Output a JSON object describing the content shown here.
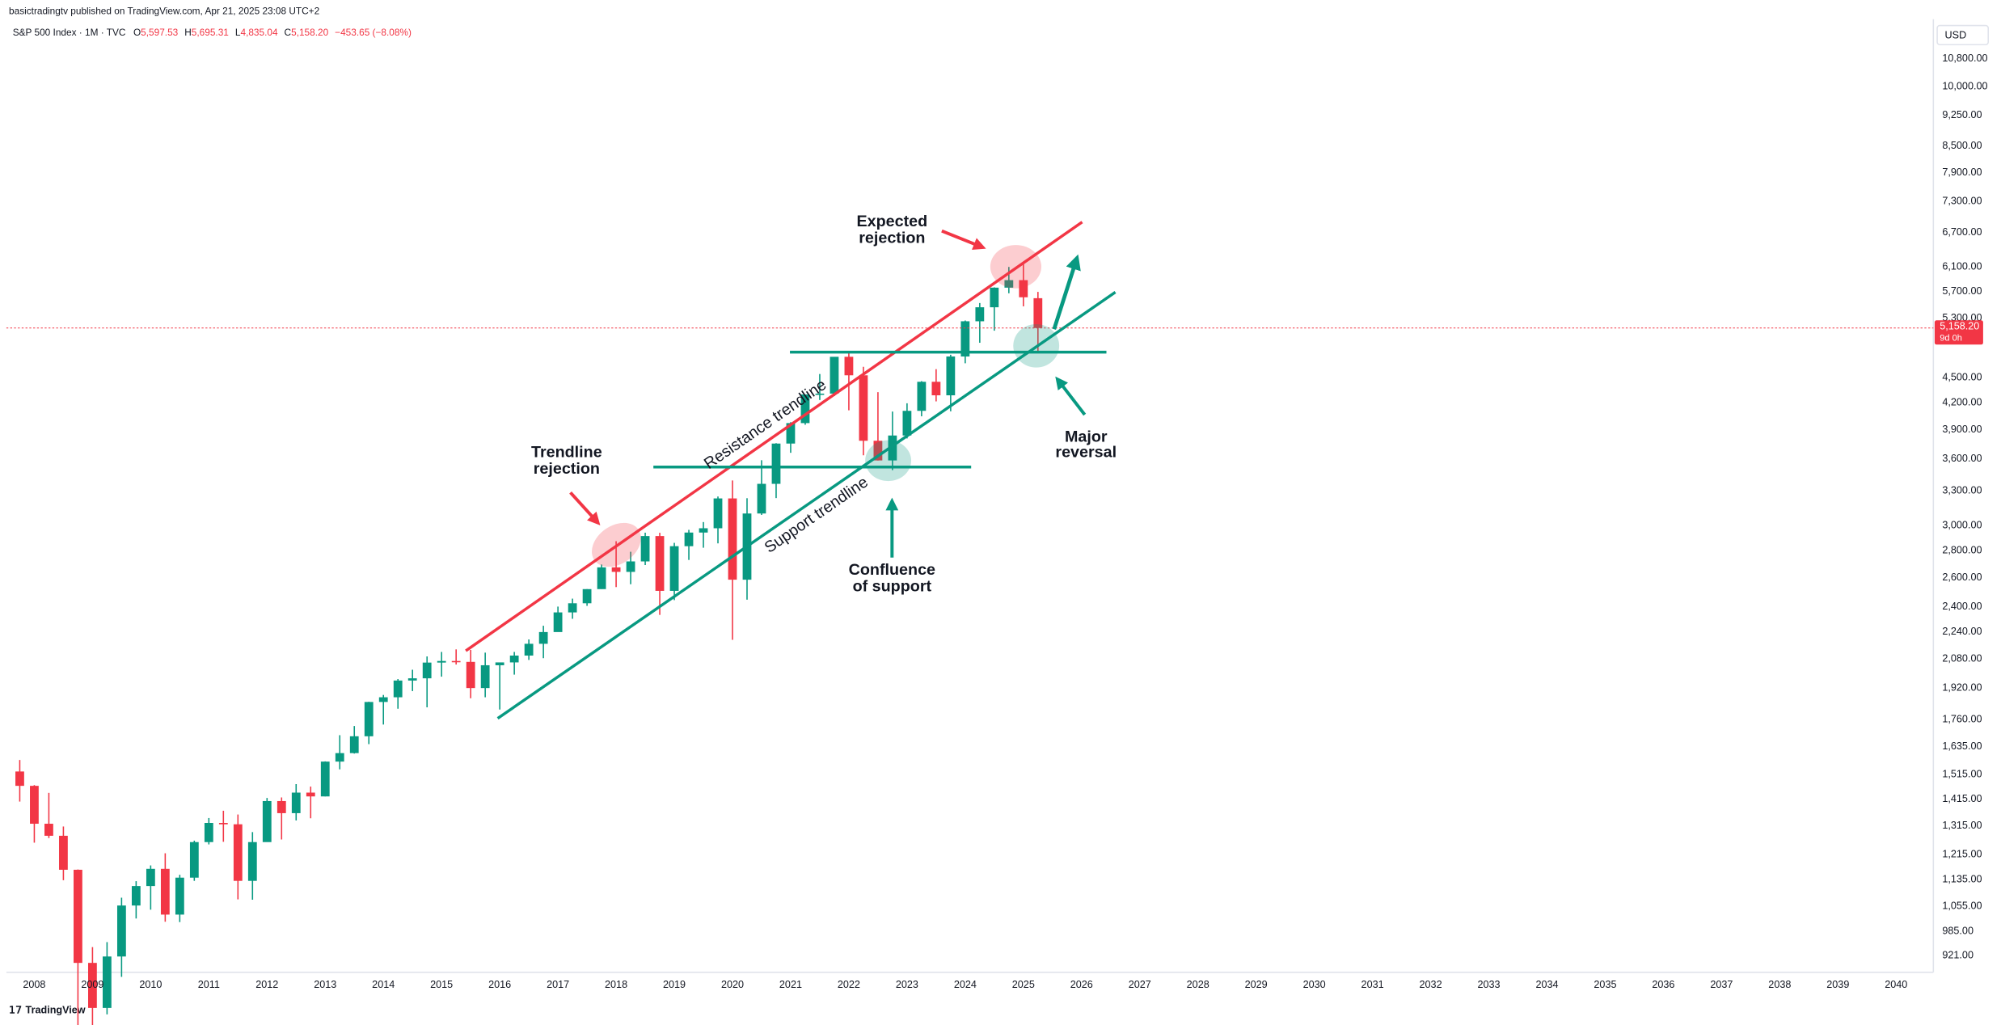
{
  "header": {
    "publisher": "basictradingtv published on TradingView.com, Apr 21, 2025 23:08 UTC+2",
    "symbol": "S&P 500 Index · 1M · TVC",
    "ohlc": [
      {
        "label": "O",
        "value": "5,597.53"
      },
      {
        "label": "H",
        "value": "5,695.31"
      },
      {
        "label": "L",
        "value": "4,835.04"
      },
      {
        "label": "C",
        "value": "5,158.20"
      }
    ],
    "change": "−453.65 (−8.08%)"
  },
  "chart_data": {
    "type": "candlestick",
    "log_scale": true,
    "up_color": "#089981",
    "down_color": "#f23645",
    "currency": "USD",
    "x": [
      2007.75,
      2008.0,
      2008.25,
      2008.5,
      2008.75,
      2009.0,
      2009.25,
      2009.5,
      2009.75,
      2010.0,
      2010.25,
      2010.5,
      2010.75,
      2011.0,
      2011.25,
      2011.5,
      2011.75,
      2012.0,
      2012.25,
      2012.5,
      2012.75,
      2013.0,
      2013.25,
      2013.5,
      2013.75,
      2014.0,
      2014.25,
      2014.5,
      2014.75,
      2015.0,
      2015.25,
      2015.5,
      2015.75,
      2016.0,
      2016.25,
      2016.5,
      2016.75,
      2017.0,
      2017.25,
      2017.5,
      2017.75,
      2018.0,
      2018.25,
      2018.5,
      2018.75,
      2019.0,
      2019.25,
      2019.5,
      2019.75,
      2020.0,
      2020.25,
      2020.5,
      2020.75,
      2021.0,
      2021.25,
      2021.5,
      2021.75,
      2022.0,
      2022.25,
      2022.5,
      2022.75,
      2023.0,
      2023.25,
      2023.5,
      2023.75,
      2024.0,
      2024.25,
      2024.5,
      2024.75,
      2025.0,
      2025.25
    ],
    "open": [
      1527,
      1468,
      1323,
      1280,
      1166,
      903,
      798,
      919,
      1057,
      1115,
      1169,
      1031,
      1141,
      1258,
      1326,
      1321,
      1131,
      1258,
      1408,
      1362,
      1441,
      1426,
      1569,
      1606,
      1682,
      1848,
      1872,
      1960,
      1972,
      2059,
      2068,
      2063,
      1920,
      2044,
      2060,
      2099,
      2168,
      2239,
      2363,
      2423,
      2519,
      2674,
      2641,
      2718,
      2914,
      2507,
      2834,
      2942,
      2977,
      3231,
      2585,
      3100,
      3363,
      3756,
      3973,
      4298,
      4308,
      4766,
      4530,
      3785,
      3586,
      3840,
      4109,
      4450,
      4288,
      4770,
      5254,
      5460,
      5762,
      5882,
      5597.53
    ],
    "high": [
      1576,
      1471,
      1440,
      1313,
      1167,
      943,
      956,
      1080,
      1130,
      1180,
      1220,
      1150,
      1263,
      1344,
      1371,
      1357,
      1293,
      1420,
      1422,
      1475,
      1465,
      1570,
      1687,
      1730,
      1849,
      1884,
      1968,
      2019,
      2094,
      2120,
      2135,
      2132,
      2116,
      2044,
      2120,
      2194,
      2278,
      2401,
      2454,
      2519,
      2695,
      2873,
      2791,
      2941,
      2940,
      2860,
      2964,
      3028,
      3248,
      3394,
      3233,
      3588,
      3760,
      3983,
      4298,
      4546,
      4744,
      4818,
      4637,
      4325,
      4101,
      4195,
      4458,
      4607,
      4793,
      5265,
      5524,
      5767,
      6099,
      6147,
      5695.31
    ],
    "low": [
      1406,
      1256,
      1272,
      1133,
      741,
      667,
      784,
      869,
      1020,
      1045,
      1011,
      1010,
      1131,
      1250,
      1259,
      1075,
      1074,
      1259,
      1267,
      1335,
      1343,
      1426,
      1536,
      1604,
      1646,
      1737,
      1814,
      1904,
      1821,
      1981,
      2048,
      1867,
      1872,
      1810,
      1992,
      2074,
      2084,
      2245,
      2322,
      2406,
      2520,
      2533,
      2553,
      2691,
      2347,
      2444,
      2729,
      2822,
      2856,
      2192,
      2447,
      3088,
      3234,
      3662,
      3955,
      4233,
      4279,
      4115,
      3637,
      3585,
      3492,
      3809,
      4048,
      4217,
      4104,
      4682,
      4953,
      5120,
      5674,
      5474,
      4835.04
    ],
    "close": [
      1468,
      1323,
      1280,
      1166,
      903,
      798,
      919,
      1057,
      1115,
      1169,
      1031,
      1141,
      1258,
      1326,
      1321,
      1131,
      1258,
      1408,
      1362,
      1441,
      1426,
      1569,
      1606,
      1682,
      1848,
      1872,
      1960,
      1972,
      2059,
      2068,
      2063,
      1920,
      2044,
      2060,
      2099,
      2168,
      2239,
      2363,
      2423,
      2519,
      2674,
      2641,
      2718,
      2914,
      2507,
      2834,
      2942,
      2977,
      3231,
      2585,
      3100,
      3363,
      3756,
      3973,
      4298,
      4308,
      4766,
      4530,
      3785,
      3586,
      3840,
      4109,
      4450,
      4288,
      4770,
      5254,
      5460,
      5762,
      5882,
      5612,
      5158.2
    ],
    "xlim": [
      2007.52,
      2040.64
    ],
    "xticks": [
      2008,
      2009,
      2010,
      2011,
      2012,
      2013,
      2014,
      2015,
      2016,
      2017,
      2018,
      2019,
      2020,
      2021,
      2022,
      2023,
      2024,
      2025,
      2026,
      2027,
      2028,
      2029,
      2030,
      2031,
      2032,
      2033,
      2034,
      2035,
      2036,
      2037,
      2038,
      2039,
      2040
    ],
    "ylim": [
      880,
      12040
    ],
    "yticks": [
      {
        "value": 10800,
        "label": "10,800.00"
      },
      {
        "value": 10000,
        "label": "10,000.00"
      },
      {
        "value": 9250,
        "label": "9,250.00"
      },
      {
        "value": 8500,
        "label": "8,500.00"
      },
      {
        "value": 7900,
        "label": "7,900.00"
      },
      {
        "value": 7300,
        "label": "7,300.00"
      },
      {
        "value": 6700,
        "label": "6,700.00"
      },
      {
        "value": 6100,
        "label": "6,100.00"
      },
      {
        "value": 5700,
        "label": "5,700.00"
      },
      {
        "value": 5300,
        "label": "5,300.00"
      },
      {
        "value": 4500,
        "label": "4,500.00"
      },
      {
        "value": 4200,
        "label": "4,200.00"
      },
      {
        "value": 3900,
        "label": "3,900.00"
      },
      {
        "value": 3600,
        "label": "3,600.00"
      },
      {
        "value": 3300,
        "label": "3,300.00"
      },
      {
        "value": 3000,
        "label": "3,000.00"
      },
      {
        "value": 2800,
        "label": "2,800.00"
      },
      {
        "value": 2600,
        "label": "2,600.00"
      },
      {
        "value": 2400,
        "label": "2,400.00"
      },
      {
        "value": 2240,
        "label": "2,240.00"
      },
      {
        "value": 2080,
        "label": "2,080.00"
      },
      {
        "value": 1920,
        "label": "1,920.00"
      },
      {
        "value": 1760,
        "label": "1,760.00"
      },
      {
        "value": 1635,
        "label": "1,635.00"
      },
      {
        "value": 1515,
        "label": "1,515.00"
      },
      {
        "value": 1415,
        "label": "1,415.00"
      },
      {
        "value": 1315,
        "label": "1,315.00"
      },
      {
        "value": 1215,
        "label": "1,215.00"
      },
      {
        "value": 1135,
        "label": "1,135.00"
      },
      {
        "value": 1055,
        "label": "1,055.00"
      },
      {
        "value": 985,
        "label": "985.00"
      },
      {
        "value": 921,
        "label": "921.00"
      }
    ],
    "price_label": "5,158.20",
    "countdown": "9d 0h",
    "annotations": {
      "expected_rejection": [
        "Expected",
        "rejection"
      ],
      "trendline_rejection": [
        "Trendline",
        "rejection"
      ],
      "confluence": [
        "Confluence",
        "of support"
      ],
      "major_reversal": [
        "Major",
        "reversal"
      ],
      "resistance": "Resistance trendline",
      "support": "Support trendline"
    }
  },
  "branding": "TradingView"
}
